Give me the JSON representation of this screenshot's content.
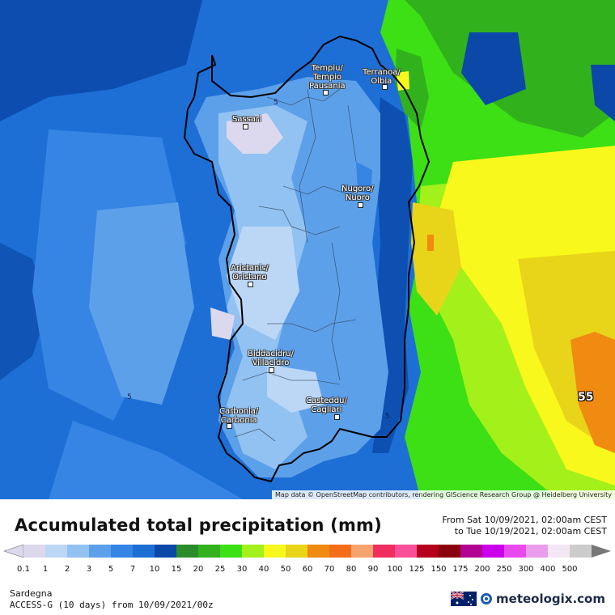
{
  "title": "Accumulated total precipitation (mm)",
  "period": {
    "from": "From Sat 10/09/2021, 02:00am CEST",
    "to": "to Tue 10/19/2021, 02:00am CEST"
  },
  "region": "Sardegna",
  "model_line": "ACCESS-G (10 days) from  10/09/2021/00z",
  "brand": "meteologix.com",
  "attribution": "Map data © OpenStreetMap contributors, rendering GIScience Research Group @ Heidelberg University",
  "cities": [
    {
      "name": "Tempiu/\nTempio\nPausania"
    },
    {
      "name": "Terranoa/\nOlbia"
    },
    {
      "name": "Sassari"
    },
    {
      "name": "Nugoro/\nNuoro"
    },
    {
      "name": "Aristanis/\nOristano"
    },
    {
      "name": "Biddacidru/\nVillacidro"
    },
    {
      "name": "Casteddu/\nCagliari"
    },
    {
      "name": "Carbonia/\nCarbonia"
    }
  ],
  "contour_labels": [
    "5",
    "5",
    "5"
  ],
  "max_value_label": "55",
  "scale": {
    "ticks": [
      "0.1",
      "1",
      "2",
      "3",
      "5",
      "7",
      "10",
      "15",
      "20",
      "25",
      "30",
      "40",
      "50",
      "60",
      "70",
      "80",
      "90",
      "100",
      "125",
      "150",
      "175",
      "200",
      "250",
      "300",
      "400",
      "500"
    ],
    "colors": [
      "#dcd9ee",
      "#bcd6f6",
      "#92c2f2",
      "#5da0ea",
      "#3685e4",
      "#1d6fd6",
      "#0b48a8",
      "#2a8c2a",
      "#31b21c",
      "#3ce014",
      "#a3f01a",
      "#f8f81c",
      "#e8d418",
      "#f08a10",
      "#f46e1a",
      "#f6a46e",
      "#ee2e5e",
      "#f85098",
      "#b4001c",
      "#8a000e",
      "#b20093",
      "#ca00ea",
      "#e84aee",
      "#ec9cec",
      "#f4e6f4",
      "#cccccc"
    ]
  }
}
